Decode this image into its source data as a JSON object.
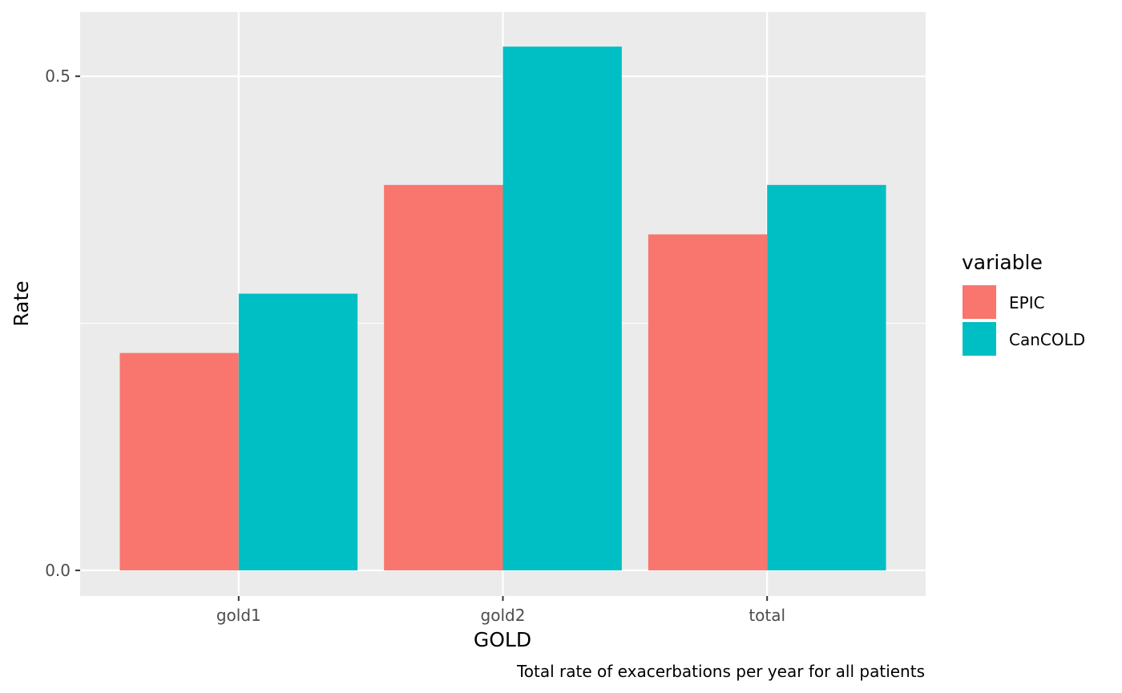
{
  "chart_data": {
    "type": "bar",
    "categories": [
      "gold1",
      "gold2",
      "total"
    ],
    "series": [
      {
        "name": "EPIC",
        "color": "#F8766D",
        "values": [
          0.22,
          0.39,
          0.34
        ]
      },
      {
        "name": "CanCOLD",
        "color": "#00BFC4",
        "values": [
          0.28,
          0.53,
          0.39
        ]
      }
    ],
    "xlabel": "GOLD",
    "ylabel": "Rate",
    "ylim": [
      -0.026,
      0.565
    ],
    "yticks": [
      0.0,
      0.5
    ],
    "ytick_labels": [
      "0.0",
      "0.5"
    ],
    "minor_gridlines": [
      0.25
    ],
    "legend_title": "variable",
    "legend_position": "right",
    "caption": "Total rate of exacerbations per year for all patients",
    "panel_background": "#EBEBEB",
    "grid_color": "#FFFFFF",
    "grid": true
  }
}
